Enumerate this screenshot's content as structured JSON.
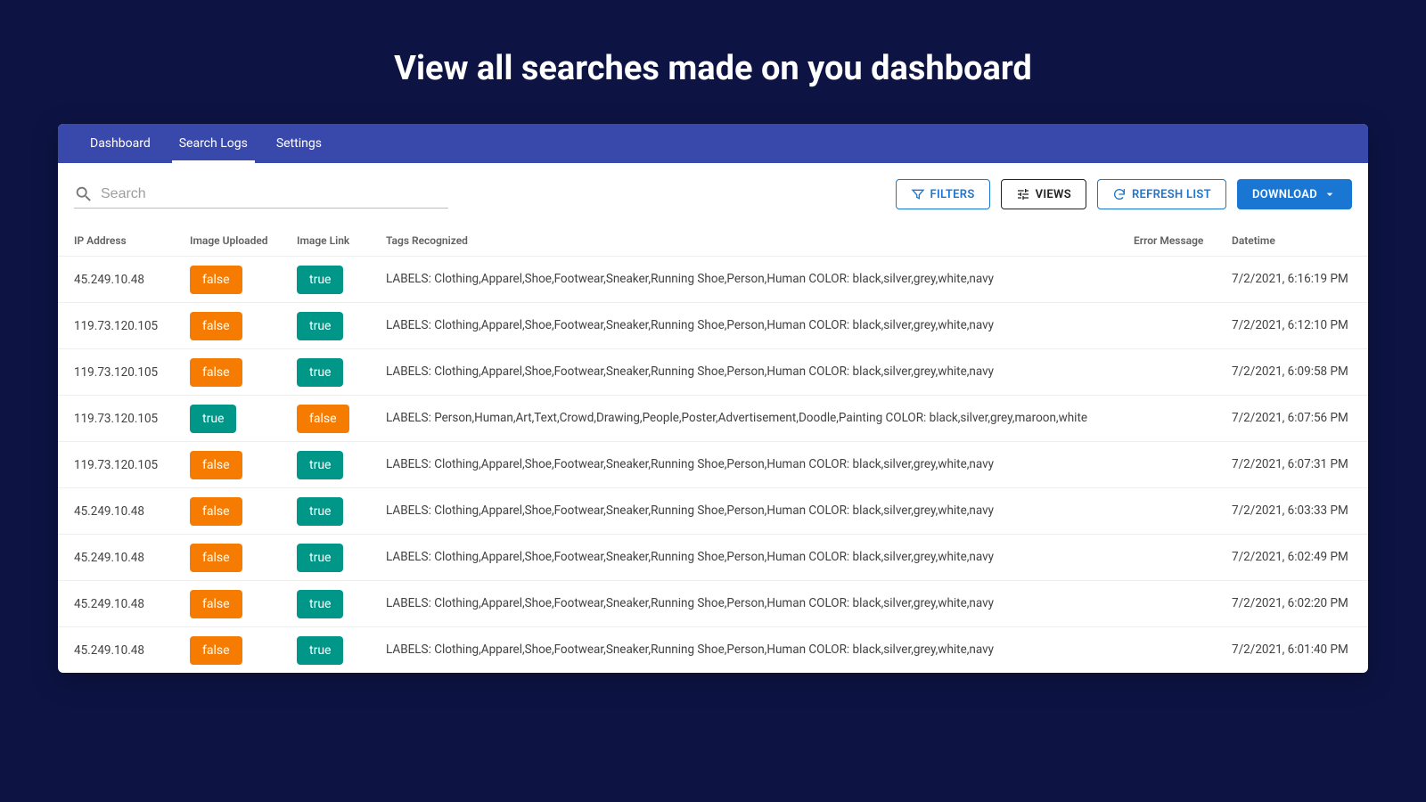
{
  "page_title": "View all searches made on you dashboard",
  "colors": {
    "page_bg": "#0d1444",
    "panel_bg": "#ffffff",
    "tabs_bg": "#3949ab",
    "primary": "#1976d2",
    "badge_true": "#009688",
    "badge_false": "#f57c00",
    "text_header": "#616161",
    "text_body": "#424242"
  },
  "tabs": [
    {
      "label": "Dashboard",
      "active": false
    },
    {
      "label": "Search Logs",
      "active": true
    },
    {
      "label": "Settings",
      "active": false
    }
  ],
  "search": {
    "placeholder": "Search"
  },
  "buttons": {
    "filters": "FILTERS",
    "views": "VIEWS",
    "refresh": "REFRESH LIST",
    "download": "DOWNLOAD"
  },
  "table": {
    "columns": [
      "IP Address",
      "Image Uploaded",
      "Image Link",
      "Tags Recognized",
      "Error Message",
      "Datetime"
    ],
    "rows": [
      {
        "ip": "45.249.10.48",
        "uploaded": "false",
        "link": "true",
        "tags": "LABELS: Clothing,Apparel,Shoe,Footwear,Sneaker,Running Shoe,Person,Human COLOR: black,silver,grey,white,navy",
        "error": "",
        "datetime": "7/2/2021, 6:16:19 PM"
      },
      {
        "ip": "119.73.120.105",
        "uploaded": "false",
        "link": "true",
        "tags": "LABELS: Clothing,Apparel,Shoe,Footwear,Sneaker,Running Shoe,Person,Human COLOR: black,silver,grey,white,navy",
        "error": "",
        "datetime": "7/2/2021, 6:12:10 PM"
      },
      {
        "ip": "119.73.120.105",
        "uploaded": "false",
        "link": "true",
        "tags": "LABELS: Clothing,Apparel,Shoe,Footwear,Sneaker,Running Shoe,Person,Human COLOR: black,silver,grey,white,navy",
        "error": "",
        "datetime": "7/2/2021, 6:09:58 PM"
      },
      {
        "ip": "119.73.120.105",
        "uploaded": "true",
        "link": "false",
        "tags": "LABELS: Person,Human,Art,Text,Crowd,Drawing,People,Poster,Advertisement,Doodle,Painting COLOR: black,silver,grey,maroon,white",
        "error": "",
        "datetime": "7/2/2021, 6:07:56 PM"
      },
      {
        "ip": "119.73.120.105",
        "uploaded": "false",
        "link": "true",
        "tags": "LABELS: Clothing,Apparel,Shoe,Footwear,Sneaker,Running Shoe,Person,Human COLOR: black,silver,grey,white,navy",
        "error": "",
        "datetime": "7/2/2021, 6:07:31 PM"
      },
      {
        "ip": "45.249.10.48",
        "uploaded": "false",
        "link": "true",
        "tags": "LABELS: Clothing,Apparel,Shoe,Footwear,Sneaker,Running Shoe,Person,Human COLOR: black,silver,grey,white,navy",
        "error": "",
        "datetime": "7/2/2021, 6:03:33 PM"
      },
      {
        "ip": "45.249.10.48",
        "uploaded": "false",
        "link": "true",
        "tags": "LABELS: Clothing,Apparel,Shoe,Footwear,Sneaker,Running Shoe,Person,Human COLOR: black,silver,grey,white,navy",
        "error": "",
        "datetime": "7/2/2021, 6:02:49 PM"
      },
      {
        "ip": "45.249.10.48",
        "uploaded": "false",
        "link": "true",
        "tags": "LABELS: Clothing,Apparel,Shoe,Footwear,Sneaker,Running Shoe,Person,Human COLOR: black,silver,grey,white,navy",
        "error": "",
        "datetime": "7/2/2021, 6:02:20 PM"
      },
      {
        "ip": "45.249.10.48",
        "uploaded": "false",
        "link": "true",
        "tags": "LABELS: Clothing,Apparel,Shoe,Footwear,Sneaker,Running Shoe,Person,Human COLOR: black,silver,grey,white,navy",
        "error": "",
        "datetime": "7/2/2021, 6:01:40 PM"
      }
    ]
  }
}
